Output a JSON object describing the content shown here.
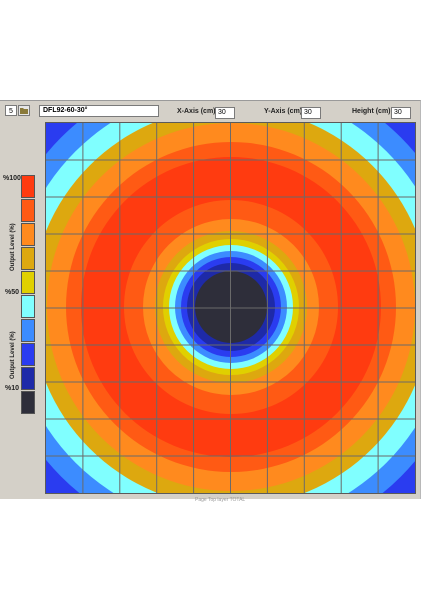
{
  "toolbar": {
    "number_value": "5",
    "product_name": "DFL92-60-30°",
    "x_axis": {
      "label": "X-Axis (cm)",
      "value": "30"
    },
    "y_axis": {
      "label": "Y-Axis (cm)",
      "value": "30"
    },
    "height": {
      "label": "Height (cm)",
      "value": "30"
    }
  },
  "legend": {
    "label_top": "%100",
    "label_mid": "%50",
    "label_bottom": "%10",
    "axis_label_upper": "Output Level (%)",
    "axis_label_lower": "Output Level (%)",
    "colors": [
      "#ff3b10",
      "#ff5a14",
      "#ff8a1e",
      "#dda80f",
      "#e0d000",
      "#80ffff",
      "#3c8cff",
      "#2a3cf0",
      "#1e2aa8",
      "#2e2e3a"
    ]
  },
  "plot": {
    "ring_colors_outer_to_inner": [
      "#2a3cf0",
      "#3c8cff",
      "#80ffff",
      "#dda80f",
      "#ff8a1e",
      "#ff5a14",
      "#ff3b10",
      "#ff5a14",
      "#ff8a1e",
      "#dda80f",
      "#e0d000",
      "#80ffff",
      "#3c8cff",
      "#2a3cf0",
      "#1e2aa8",
      "#2e2e3a"
    ],
    "background_color": "#1e2aa8",
    "grid_divisions": 10
  },
  "footer": {
    "text": "Page   Top layer TOTAL"
  }
}
